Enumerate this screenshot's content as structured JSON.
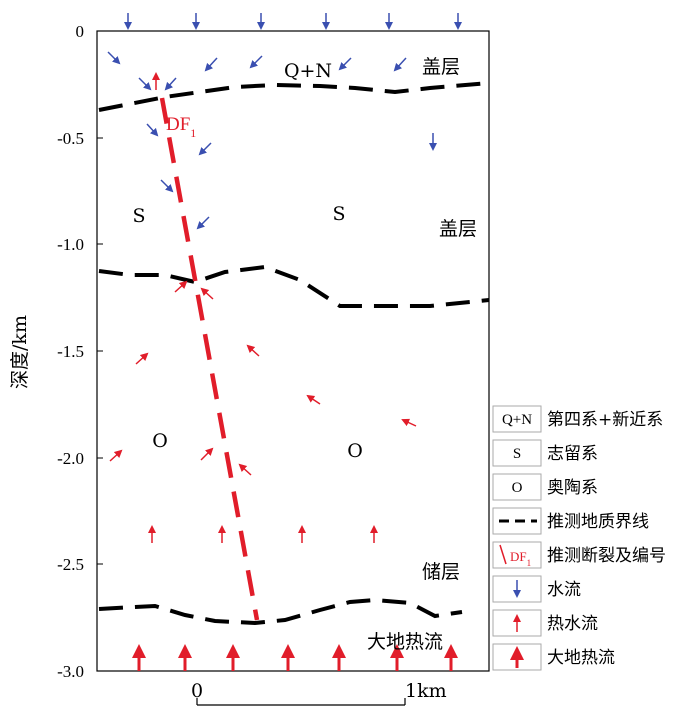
{
  "y_axis": {
    "label": "深度/km",
    "ticks": [
      "0",
      "-0.5",
      "-1.0",
      "-1.5",
      "-2.0",
      "-2.5",
      "-3.0"
    ]
  },
  "scale_bar": {
    "start": "0",
    "end": "1km"
  },
  "colors": {
    "water": "#3a4fb0",
    "hot": "#e11d2a",
    "boundary": "#000000"
  },
  "labels": {
    "qn": "Q+N",
    "cap_top": "盖层",
    "cap_mid": "盖层",
    "s_left": "S",
    "s_right": "S",
    "o_left": "O",
    "o_right": "O",
    "reservoir": "储层",
    "heat_flow": "大地热流",
    "fault_main": "DF",
    "fault_sub": "1"
  },
  "legend": [
    {
      "symbol": "Q+N",
      "text": "第四系+新近系"
    },
    {
      "symbol": "S",
      "text": "志留系"
    },
    {
      "symbol": "O",
      "text": "奥陶系"
    },
    {
      "symbol": "dash-line",
      "text": "推测地质界线"
    },
    {
      "symbol": "fault",
      "symbol_text": "DF",
      "symbol_sub": "1",
      "text": "推测断裂及编号"
    },
    {
      "symbol": "water-arrow-icon",
      "text": "水流"
    },
    {
      "symbol": "hot-arrow-icon",
      "text": "热水流"
    },
    {
      "symbol": "heat-arrow-icon",
      "text": "大地热流"
    }
  ]
}
